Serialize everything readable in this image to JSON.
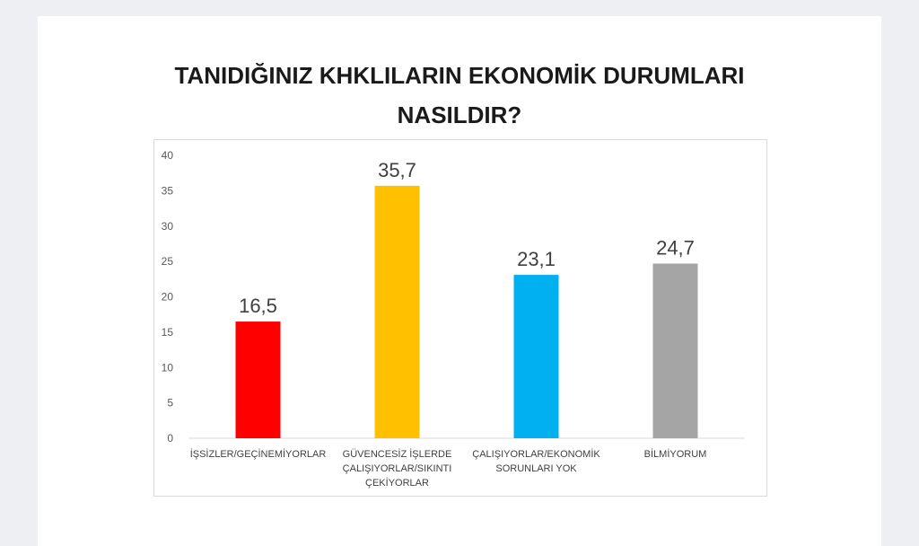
{
  "chart_data": {
    "type": "bar",
    "title_lines": [
      "TANIDIĞINIZ KHKLILARIN EKONOMİK DURUMLARI",
      "NASILDIR?"
    ],
    "categories": [
      [
        "İŞSİZLER/GEÇİNEMİYORLAR"
      ],
      [
        "GÜVENCESİZ İŞLERDE",
        "ÇALIŞIYORLAR/SIKINTI",
        "ÇEKİYORLAR"
      ],
      [
        "ÇALIŞIYORLAR/EKONOMİK",
        "SORUNLARI YOK"
      ],
      [
        "BİLMİYORUM"
      ]
    ],
    "values": [
      16.5,
      35.7,
      23.1,
      24.7
    ],
    "data_labels": [
      "16,5",
      "35,7",
      "23,1",
      "24,7"
    ],
    "colors": [
      "#ff0000",
      "#ffc000",
      "#00b0f0",
      "#a5a5a5"
    ],
    "ylim": [
      0,
      40
    ],
    "yticks": [
      0,
      5,
      10,
      15,
      20,
      25,
      30,
      35,
      40
    ],
    "xlabel": "",
    "ylabel": "",
    "grid": false,
    "legend": "none"
  }
}
